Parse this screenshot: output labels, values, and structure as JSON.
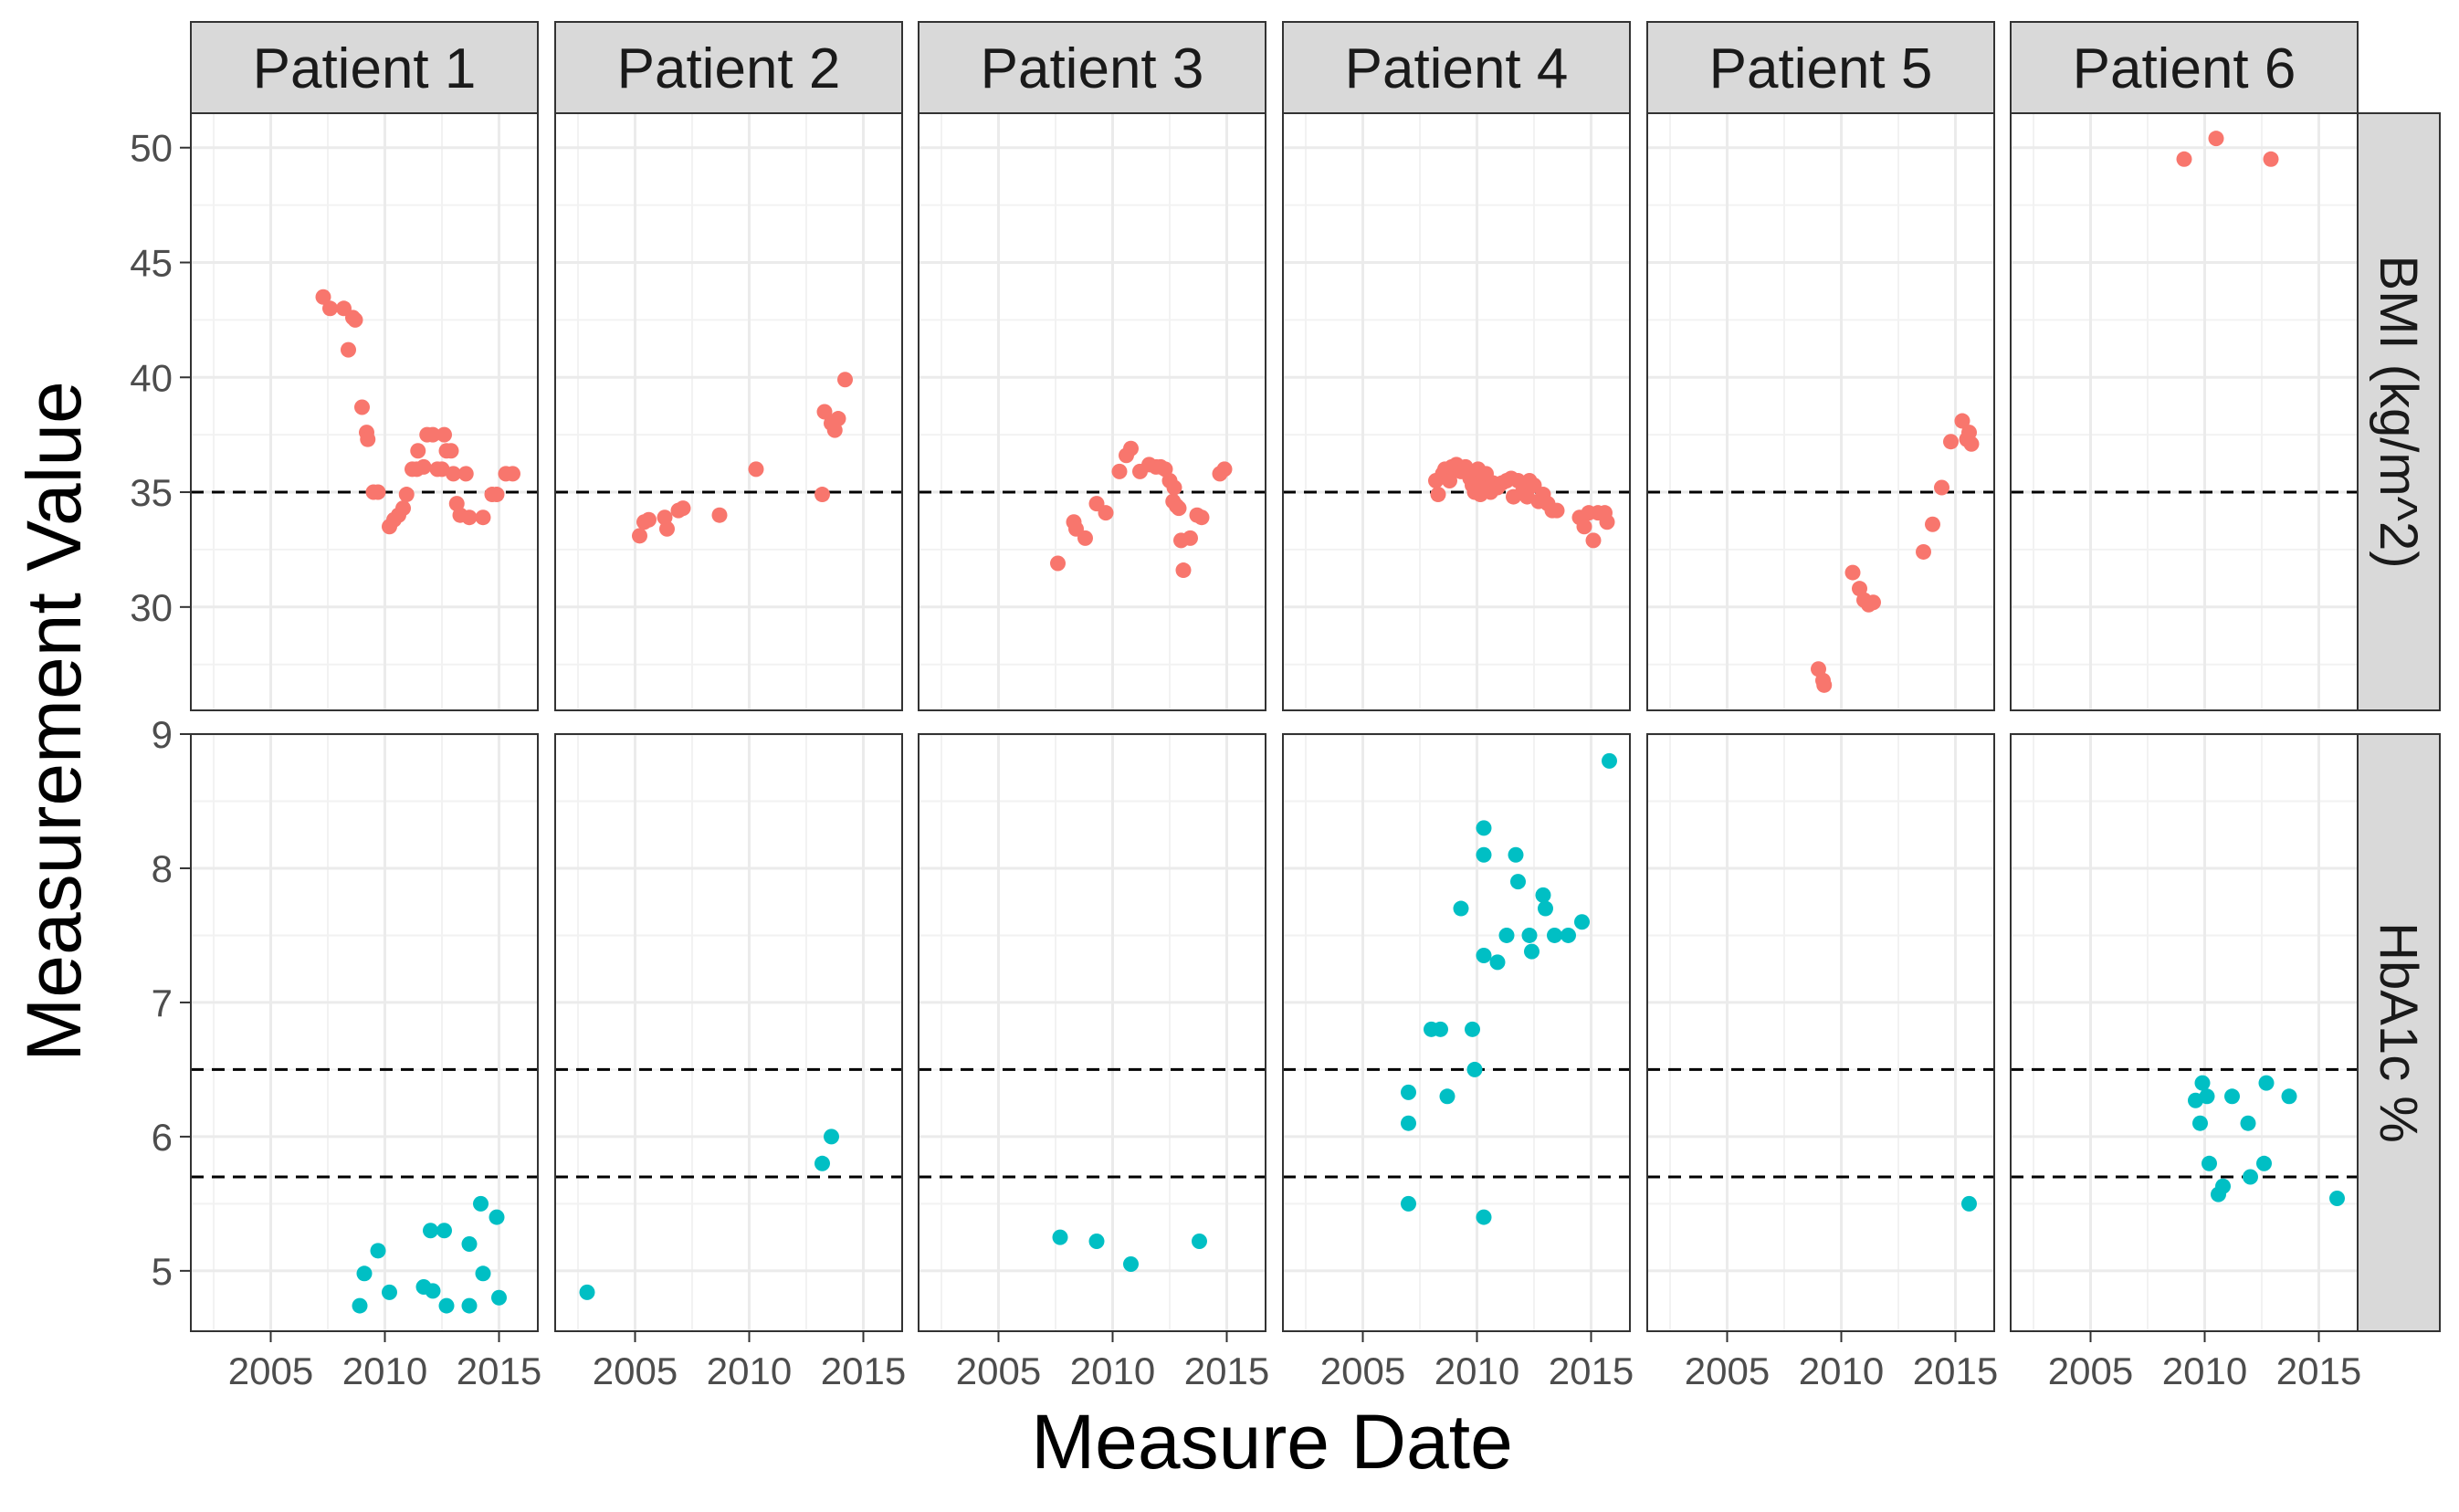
{
  "chart_data": {
    "type": "scatter",
    "xlabel": "Measure Date",
    "ylabel": "Measurement Value",
    "grid": true,
    "legend": "none",
    "facet_columns": [
      "Patient 1",
      "Patient 2",
      "Patient 3",
      "Patient 4",
      "Patient 5",
      "Patient 6"
    ],
    "x_ticks": [
      "2005",
      "2010",
      "2015"
    ],
    "xlim": [
      2001.5,
      2016.7
    ],
    "rows": [
      {
        "label": "BMI (kg/m^2)",
        "color": "#F8766D",
        "ylim": [
          25.5,
          51.5
        ],
        "y_ticks": [
          30,
          35,
          40,
          45,
          50
        ],
        "reference_lines": [
          35
        ],
        "panels": [
          {
            "patient": "Patient 1",
            "points": [
              [
                2007.3,
                43.5
              ],
              [
                2007.6,
                43.0
              ],
              [
                2008.2,
                43.0
              ],
              [
                2008.4,
                41.2
              ],
              [
                2008.6,
                42.6
              ],
              [
                2008.7,
                42.5
              ],
              [
                2009.0,
                38.7
              ],
              [
                2009.2,
                37.6
              ],
              [
                2009.25,
                37.3
              ],
              [
                2009.5,
                35.0
              ],
              [
                2009.7,
                35.0
              ],
              [
                2010.2,
                33.5
              ],
              [
                2010.4,
                33.8
              ],
              [
                2010.6,
                34.0
              ],
              [
                2010.8,
                34.3
              ],
              [
                2010.95,
                34.9
              ],
              [
                2011.2,
                36.0
              ],
              [
                2011.4,
                36.0
              ],
              [
                2011.45,
                36.8
              ],
              [
                2011.7,
                36.1
              ],
              [
                2011.85,
                37.5
              ],
              [
                2012.1,
                37.5
              ],
              [
                2012.3,
                36.0
              ],
              [
                2012.5,
                36.0
              ],
              [
                2012.6,
                37.5
              ],
              [
                2012.7,
                36.8
              ],
              [
                2012.9,
                36.8
              ],
              [
                2013.0,
                35.8
              ],
              [
                2013.15,
                34.5
              ],
              [
                2013.3,
                34.0
              ],
              [
                2013.55,
                35.8
              ],
              [
                2013.7,
                33.9
              ],
              [
                2014.3,
                33.9
              ],
              [
                2014.7,
                34.9
              ],
              [
                2014.9,
                34.9
              ],
              [
                2015.3,
                35.8
              ],
              [
                2015.6,
                35.8
              ]
            ]
          },
          {
            "patient": "Patient 2",
            "points": [
              [
                2005.2,
                33.1
              ],
              [
                2005.4,
                33.7
              ],
              [
                2005.6,
                33.8
              ],
              [
                2006.3,
                33.9
              ],
              [
                2006.4,
                33.4
              ],
              [
                2006.9,
                34.2
              ],
              [
                2007.1,
                34.3
              ],
              [
                2008.7,
                34.0
              ],
              [
                2010.3,
                36.0
              ],
              [
                2013.2,
                34.9
              ],
              [
                2013.3,
                38.5
              ],
              [
                2013.6,
                38.0
              ],
              [
                2013.75,
                37.7
              ],
              [
                2013.9,
                38.2
              ],
              [
                2014.2,
                39.9
              ]
            ]
          },
          {
            "patient": "Patient 3",
            "points": [
              [
                2007.6,
                31.9
              ],
              [
                2008.3,
                33.7
              ],
              [
                2008.4,
                33.4
              ],
              [
                2008.8,
                33.0
              ],
              [
                2009.3,
                34.5
              ],
              [
                2009.7,
                34.1
              ],
              [
                2010.3,
                35.9
              ],
              [
                2010.6,
                36.6
              ],
              [
                2010.8,
                36.9
              ],
              [
                2011.2,
                35.9
              ],
              [
                2011.6,
                36.2
              ],
              [
                2011.9,
                36.1
              ],
              [
                2012.1,
                36.1
              ],
              [
                2012.3,
                36.0
              ],
              [
                2012.5,
                35.5
              ],
              [
                2012.65,
                34.6
              ],
              [
                2012.7,
                35.2
              ],
              [
                2012.8,
                34.4
              ],
              [
                2012.9,
                34.3
              ],
              [
                2013.0,
                32.9
              ],
              [
                2013.1,
                31.6
              ],
              [
                2013.4,
                33.0
              ],
              [
                2013.7,
                34.0
              ],
              [
                2013.9,
                33.9
              ],
              [
                2014.7,
                35.8
              ],
              [
                2014.9,
                36.0
              ]
            ]
          },
          {
            "patient": "Patient 4",
            "points": [
              [
                2008.2,
                35.5
              ],
              [
                2008.3,
                34.9
              ],
              [
                2008.5,
                35.8
              ],
              [
                2008.6,
                36.0
              ],
              [
                2008.8,
                35.5
              ],
              [
                2008.9,
                36.1
              ],
              [
                2009.1,
                36.2
              ],
              [
                2009.3,
                35.9
              ],
              [
                2009.5,
                36.1
              ],
              [
                2009.7,
                35.6
              ],
              [
                2009.8,
                35.3
              ],
              [
                2009.9,
                35.0
              ],
              [
                2010.0,
                35.9
              ],
              [
                2010.05,
                36.0
              ],
              [
                2010.15,
                34.9
              ],
              [
                2010.2,
                35.2
              ],
              [
                2010.3,
                35.5
              ],
              [
                2010.4,
                35.8
              ],
              [
                2010.5,
                35.2
              ],
              [
                2010.6,
                35.0
              ],
              [
                2010.7,
                35.4
              ],
              [
                2010.9,
                35.2
              ],
              [
                2011.1,
                35.4
              ],
              [
                2011.3,
                35.5
              ],
              [
                2011.5,
                35.6
              ],
              [
                2011.6,
                34.8
              ],
              [
                2011.8,
                35.5
              ],
              [
                2012.0,
                35.0
              ],
              [
                2012.2,
                34.8
              ],
              [
                2012.3,
                35.5
              ],
              [
                2012.5,
                35.3
              ],
              [
                2012.7,
                34.6
              ],
              [
                2012.9,
                34.9
              ],
              [
                2013.1,
                34.5
              ],
              [
                2013.3,
                34.2
              ],
              [
                2013.5,
                34.2
              ],
              [
                2014.5,
                33.9
              ],
              [
                2014.7,
                33.5
              ],
              [
                2014.9,
                34.1
              ],
              [
                2015.1,
                32.9
              ],
              [
                2015.3,
                34.1
              ],
              [
                2015.6,
                34.1
              ],
              [
                2015.7,
                33.7
              ]
            ]
          },
          {
            "patient": "Patient 5",
            "points": [
              [
                2009.0,
                27.3
              ],
              [
                2009.2,
                26.8
              ],
              [
                2009.25,
                26.6
              ],
              [
                2010.5,
                31.5
              ],
              [
                2010.8,
                30.8
              ],
              [
                2011.0,
                30.3
              ],
              [
                2011.2,
                30.1
              ],
              [
                2011.4,
                30.2
              ],
              [
                2013.6,
                32.4
              ],
              [
                2014.0,
                33.6
              ],
              [
                2014.4,
                35.2
              ],
              [
                2014.8,
                37.2
              ],
              [
                2015.3,
                38.1
              ],
              [
                2015.5,
                37.3
              ],
              [
                2015.6,
                37.6
              ],
              [
                2015.7,
                37.1
              ]
            ]
          },
          {
            "patient": "Patient 6",
            "points": [
              [
                2009.1,
                49.5
              ],
              [
                2010.5,
                50.4
              ],
              [
                2012.9,
                49.5
              ]
            ]
          }
        ]
      },
      {
        "label": "HbA1c %",
        "color": "#00BFC4",
        "ylim": [
          4.55,
          9.0
        ],
        "y_ticks": [
          5,
          6,
          7,
          8,
          9
        ],
        "reference_lines": [
          5.7,
          6.5
        ],
        "panels": [
          {
            "patient": "Patient 1",
            "points": [
              [
                2008.9,
                4.74
              ],
              [
                2009.1,
                4.98
              ],
              [
                2009.7,
                5.15
              ],
              [
                2010.2,
                4.84
              ],
              [
                2011.7,
                4.88
              ],
              [
                2012.0,
                5.3
              ],
              [
                2012.1,
                4.85
              ],
              [
                2012.6,
                5.3
              ],
              [
                2012.7,
                4.74
              ],
              [
                2013.7,
                5.2
              ],
              [
                2013.7,
                4.74
              ],
              [
                2014.2,
                5.5
              ],
              [
                2014.3,
                4.98
              ],
              [
                2014.9,
                5.4
              ],
              [
                2015.0,
                4.8
              ]
            ]
          },
          {
            "patient": "Patient 2",
            "points": [
              [
                2002.9,
                4.84
              ],
              [
                2013.2,
                5.8
              ],
              [
                2013.6,
                6.0
              ]
            ]
          },
          {
            "patient": "Patient 3",
            "points": [
              [
                2007.7,
                5.25
              ],
              [
                2009.3,
                5.22
              ],
              [
                2010.8,
                5.05
              ],
              [
                2013.8,
                5.22
              ]
            ]
          },
          {
            "patient": "Patient 4",
            "points": [
              [
                2007.0,
                6.33
              ],
              [
                2007.0,
                6.1
              ],
              [
                2007.0,
                5.5
              ],
              [
                2008.0,
                6.8
              ],
              [
                2008.4,
                6.8
              ],
              [
                2008.7,
                6.3
              ],
              [
                2009.3,
                7.7
              ],
              [
                2009.8,
                6.8
              ],
              [
                2009.9,
                6.5
              ],
              [
                2010.3,
                8.3
              ],
              [
                2010.3,
                8.1
              ],
              [
                2010.3,
                7.35
              ],
              [
                2010.3,
                5.4
              ],
              [
                2010.9,
                7.3
              ],
              [
                2011.3,
                7.5
              ],
              [
                2011.7,
                8.1
              ],
              [
                2011.8,
                7.9
              ],
              [
                2012.3,
                7.5
              ],
              [
                2012.4,
                7.38
              ],
              [
                2012.9,
                7.8
              ],
              [
                2013.0,
                7.7
              ],
              [
                2013.4,
                7.5
              ],
              [
                2014.0,
                7.5
              ],
              [
                2014.6,
                7.6
              ],
              [
                2015.8,
                8.8
              ]
            ]
          },
          {
            "patient": "Patient 5",
            "points": [
              [
                2015.6,
                5.5
              ]
            ]
          },
          {
            "patient": "Patient 6",
            "points": [
              [
                2009.6,
                6.27
              ],
              [
                2009.9,
                6.4
              ],
              [
                2009.8,
                6.1
              ],
              [
                2010.1,
                6.3
              ],
              [
                2010.2,
                5.8
              ],
              [
                2010.6,
                5.57
              ],
              [
                2010.8,
                5.63
              ],
              [
                2011.2,
                6.3
              ],
              [
                2011.9,
                6.1
              ],
              [
                2012.0,
                5.7
              ],
              [
                2012.6,
                5.8
              ],
              [
                2012.7,
                6.4
              ],
              [
                2013.7,
                6.3
              ],
              [
                2015.8,
                5.54
              ]
            ]
          }
        ]
      }
    ]
  }
}
